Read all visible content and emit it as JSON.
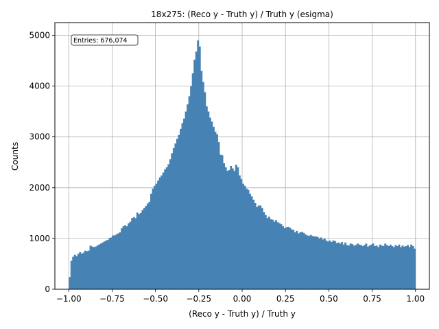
{
  "chart_data": {
    "type": "bar",
    "title": "18x275: (Reco y - Truth y) / Truth y (esigma)",
    "xlabel": "(Reco y - Truth y) / Truth y",
    "ylabel": "Counts",
    "xlim": [
      -1.08,
      1.08
    ],
    "ylim": [
      0,
      5250
    ],
    "xticks": [
      "−1.00",
      "−0.75",
      "−0.50",
      "−0.25",
      "0.00",
      "0.25",
      "0.50",
      "0.75",
      "1.00"
    ],
    "xtick_values": [
      -1.0,
      -0.75,
      -0.5,
      -0.25,
      0.0,
      0.25,
      0.5,
      0.75,
      1.0
    ],
    "yticks": [
      "0",
      "1000",
      "2000",
      "3000",
      "4000",
      "5000"
    ],
    "ytick_values": [
      0,
      1000,
      2000,
      3000,
      4000,
      5000
    ],
    "grid": true,
    "bar_color": "#4682b4",
    "stats_box": "Entries: 676,074",
    "bins": {
      "start": -1.0,
      "end": 1.0,
      "count": 200
    },
    "values": [
      240,
      560,
      640,
      680,
      650,
      700,
      730,
      700,
      720,
      760,
      750,
      760,
      860,
      840,
      830,
      840,
      860,
      880,
      900,
      920,
      940,
      960,
      970,
      1010,
      1020,
      1060,
      1060,
      1080,
      1100,
      1120,
      1200,
      1240,
      1260,
      1240,
      1300,
      1330,
      1400,
      1420,
      1400,
      1510,
      1480,
      1500,
      1560,
      1600,
      1640,
      1690,
      1720,
      1880,
      1980,
      2040,
      2080,
      2140,
      2200,
      2240,
      2300,
      2360,
      2400,
      2460,
      2560,
      2680,
      2780,
      2870,
      2960,
      3040,
      3160,
      3270,
      3360,
      3500,
      3640,
      3800,
      4000,
      4250,
      4520,
      4680,
      4900,
      4780,
      4300,
      4080,
      3880,
      3600,
      3500,
      3380,
      3300,
      3200,
      3100,
      3050,
      2900,
      2650,
      2640,
      2480,
      2400,
      2330,
      2350,
      2430,
      2380,
      2330,
      2450,
      2400,
      2240,
      2170,
      2080,
      2040,
      1980,
      1960,
      1880,
      1830,
      1760,
      1700,
      1620,
      1650,
      1650,
      1600,
      1520,
      1460,
      1400,
      1430,
      1380,
      1370,
      1330,
      1360,
      1320,
      1300,
      1280,
      1240,
      1200,
      1220,
      1230,
      1210,
      1180,
      1170,
      1120,
      1150,
      1100,
      1120,
      1130,
      1110,
      1080,
      1060,
      1050,
      1070,
      1050,
      1040,
      1040,
      1030,
      1000,
      1020,
      980,
      1000,
      960,
      940,
      960,
      930,
      960,
      950,
      910,
      920,
      900,
      930,
      880,
      920,
      870,
      860,
      900,
      890,
      860,
      870,
      900,
      880,
      870,
      850,
      870,
      900,
      840,
      860,
      880,
      900,
      850,
      860,
      830,
      880,
      860,
      850,
      900,
      870,
      850,
      880,
      850,
      830,
      870,
      850,
      880,
      830,
      860,
      840,
      850,
      870,
      830,
      880,
      850,
      800
    ]
  }
}
